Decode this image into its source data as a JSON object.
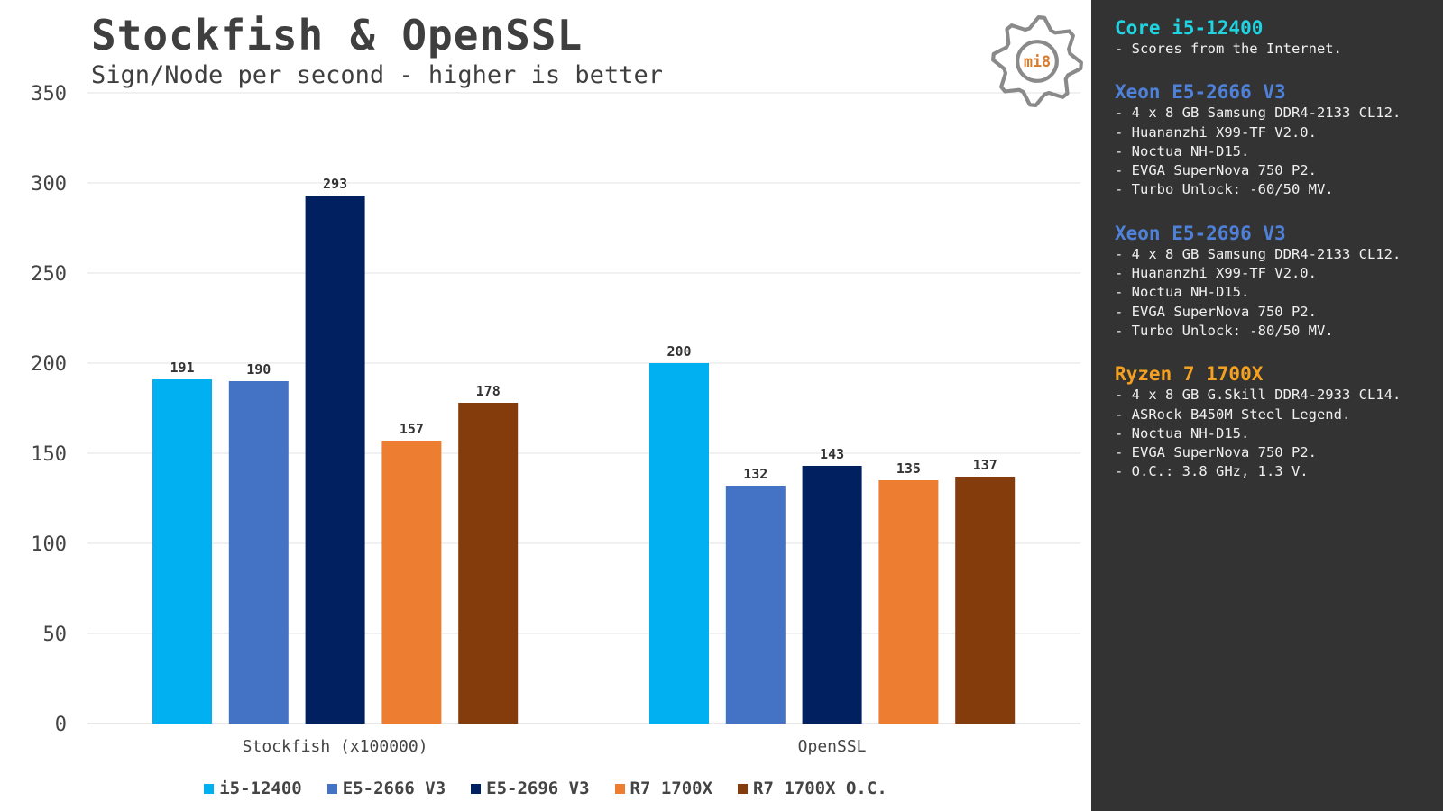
{
  "chart_data": {
    "type": "bar",
    "title": "Stockfish & OpenSSL",
    "subtitle": "Sign/Node per second - higher is better",
    "categories": [
      "Stockfish (x100000)",
      "OpenSSL"
    ],
    "ylim": [
      0,
      350
    ],
    "yticks": [
      0,
      50,
      100,
      150,
      200,
      250,
      300,
      350
    ],
    "grid": true,
    "legend_position": "bottom",
    "series": [
      {
        "name": "i5-12400",
        "color": "#00b0f0",
        "values": [
          191,
          200
        ]
      },
      {
        "name": "E5-2666 V3",
        "color": "#4472c4",
        "values": [
          190,
          132
        ]
      },
      {
        "name": "E5-2696 V3",
        "color": "#002060",
        "values": [
          293,
          143
        ]
      },
      {
        "name": "R7 1700X",
        "color": "#ed7d31",
        "values": [
          157,
          135
        ]
      },
      {
        "name": "R7 1700X O.C.",
        "color": "#843c0c",
        "values": [
          178,
          137
        ]
      }
    ]
  },
  "logo": {
    "text": "mi8",
    "icon": "gear-icon"
  },
  "sidebar": {
    "specs": [
      {
        "title": "Core i5-12400",
        "color": "#1fd3e0",
        "lines": [
          "- Scores from the Internet."
        ]
      },
      {
        "title": "Xeon E5-2666 V3",
        "color": "#4f81d9",
        "lines": [
          "- 4 x 8 GB Samsung DDR4-2133 CL12.",
          "- Huananzhi X99-TF V2.0.",
          "- Noctua NH-D15.",
          "- EVGA SuperNova 750 P2.",
          "- Turbo Unlock: -60/50 MV."
        ]
      },
      {
        "title": "Xeon E5-2696 V3",
        "color": "#4f81d9",
        "lines": [
          "- 4 x 8 GB Samsung DDR4-2133 CL12.",
          "- Huananzhi X99-TF V2.0.",
          "- Noctua NH-D15.",
          "- EVGA SuperNova 750 P2.",
          "- Turbo Unlock: -80/50 MV."
        ]
      },
      {
        "title": "Ryzen 7 1700X",
        "color": "#f4a020",
        "lines": [
          "- 4 x 8 GB G.Skill DDR4-2933 CL14.",
          "- ASRock B450M Steel Legend.",
          "- Noctua NH-D15.",
          "- EVGA SuperNova 750 P2.",
          "- O.C.: 3.8 GHz, 1.3 V."
        ]
      }
    ]
  }
}
